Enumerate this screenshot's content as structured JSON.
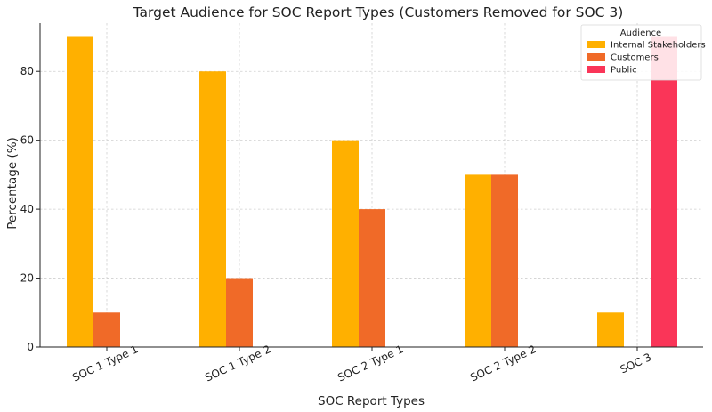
{
  "chart_data": {
    "type": "bar",
    "title": "Target Audience for SOC Report Types (Customers Removed for SOC 3)",
    "xlabel": "SOC Report Types",
    "ylabel": "Percentage (%)",
    "categories": [
      "SOC 1 Type 1",
      "SOC 1 Type 2",
      "SOC 2 Type 1",
      "SOC 2 Type 2",
      "SOC 3"
    ],
    "series": [
      {
        "name": "Internal Stakeholders",
        "color": "#FFB000",
        "values": [
          90,
          80,
          60,
          50,
          10
        ]
      },
      {
        "name": "Customers",
        "color": "#F06A28",
        "values": [
          10,
          20,
          40,
          50,
          null
        ]
      },
      {
        "name": "Public",
        "color": "#FA3558",
        "values": [
          null,
          null,
          null,
          null,
          90
        ]
      }
    ],
    "yticks": [
      0,
      20,
      40,
      60,
      80
    ],
    "ylim": [
      0,
      94
    ],
    "grid": true,
    "legend": {
      "title": "Audience",
      "placement": "top-right"
    }
  }
}
